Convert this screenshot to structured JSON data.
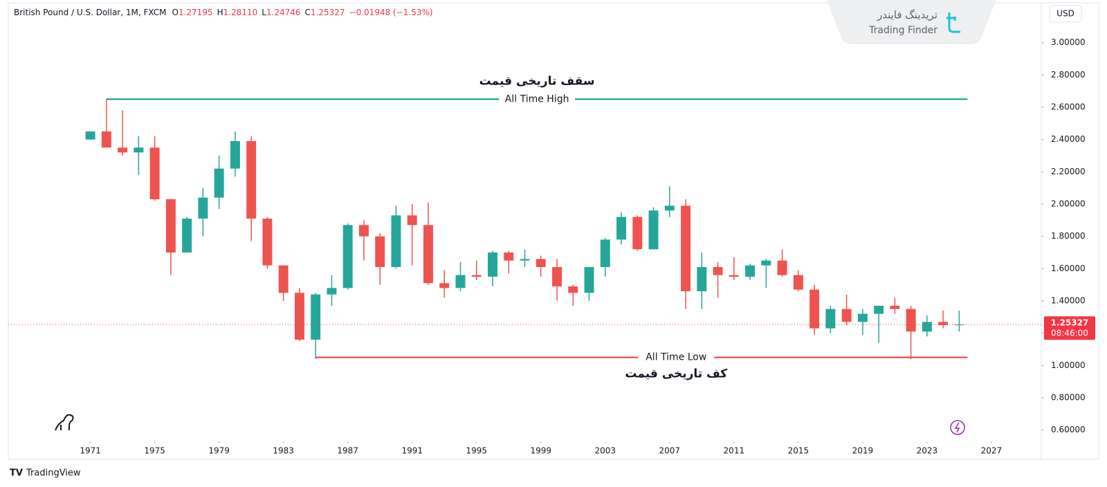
{
  "chart_data": {
    "type": "candlestick",
    "header": {
      "title": "British Pound / U.S. Dollar, 1M, FXCM",
      "ohlc": [
        {
          "label": "O",
          "value": "1.27195"
        },
        {
          "label": "H",
          "value": "1.28110"
        },
        {
          "label": "L",
          "value": "1.24746"
        },
        {
          "label": "C",
          "value": "1.25327"
        }
      ],
      "change": "−0.01948 (−1.53%)"
    },
    "currency": "USD",
    "brand": {
      "persian": "تریدینگ فایندر",
      "latin": "Trading Finder"
    },
    "footer": "TradingView",
    "up_color": "#26a69a",
    "down_color": "#ef5350",
    "x": [
      1971,
      1972,
      1973,
      1974,
      1975,
      1976,
      1977,
      1978,
      1979,
      1980,
      1981,
      1982,
      1983,
      1984,
      1985,
      1986,
      1987,
      1988,
      1989,
      1990,
      1991,
      1992,
      1993,
      1994,
      1995,
      1996,
      1997,
      1998,
      1999,
      2000,
      2001,
      2002,
      2003,
      2004,
      2005,
      2006,
      2007,
      2008,
      2009,
      2010,
      2011,
      2012,
      2013,
      2014,
      2015,
      2016,
      2017,
      2018,
      2019,
      2020,
      2021,
      2022,
      2023,
      2024,
      2025
    ],
    "open": [
      2.4,
      2.45,
      2.35,
      2.32,
      2.35,
      2.03,
      1.7,
      1.91,
      2.04,
      2.22,
      2.39,
      1.91,
      1.62,
      1.45,
      1.16,
      1.44,
      1.48,
      1.87,
      1.8,
      1.61,
      1.93,
      1.87,
      1.51,
      1.48,
      1.56,
      1.55,
      1.7,
      1.65,
      1.66,
      1.61,
      1.49,
      1.45,
      1.61,
      1.78,
      1.92,
      1.72,
      1.96,
      1.99,
      1.46,
      1.61,
      1.56,
      1.55,
      1.62,
      1.65,
      1.56,
      1.47,
      1.23,
      1.35,
      1.27,
      1.32,
      1.37,
      1.35,
      1.21,
      1.27,
      1.25
    ],
    "high": [
      2.45,
      2.65,
      2.58,
      2.42,
      2.42,
      2.03,
      1.92,
      2.1,
      2.3,
      2.45,
      2.42,
      1.92,
      1.62,
      1.48,
      1.45,
      1.56,
      1.88,
      1.9,
      1.82,
      1.99,
      2.0,
      2.01,
      1.59,
      1.64,
      1.65,
      1.71,
      1.71,
      1.72,
      1.68,
      1.66,
      1.5,
      1.61,
      1.79,
      1.95,
      1.93,
      1.98,
      2.11,
      2.03,
      1.7,
      1.64,
      1.67,
      1.63,
      1.66,
      1.72,
      1.59,
      1.5,
      1.37,
      1.44,
      1.35,
      1.37,
      1.42,
      1.37,
      1.31,
      1.34,
      1.34
    ],
    "low": [
      2.4,
      2.35,
      2.3,
      2.18,
      2.02,
      1.56,
      1.7,
      1.8,
      1.97,
      2.17,
      1.77,
      1.6,
      1.4,
      1.15,
      1.04,
      1.37,
      1.47,
      1.65,
      1.5,
      1.6,
      1.62,
      1.5,
      1.42,
      1.46,
      1.53,
      1.49,
      1.57,
      1.61,
      1.55,
      1.4,
      1.37,
      1.4,
      1.55,
      1.75,
      1.71,
      1.72,
      1.92,
      1.35,
      1.35,
      1.42,
      1.53,
      1.53,
      1.48,
      1.55,
      1.46,
      1.19,
      1.2,
      1.25,
      1.19,
      1.14,
      1.32,
      1.04,
      1.18,
      1.23,
      1.21
    ],
    "close": [
      2.45,
      2.35,
      2.32,
      2.35,
      2.03,
      1.7,
      1.91,
      2.04,
      2.22,
      2.39,
      1.91,
      1.62,
      1.45,
      1.16,
      1.44,
      1.48,
      1.87,
      1.8,
      1.61,
      1.93,
      1.87,
      1.51,
      1.48,
      1.56,
      1.55,
      1.7,
      1.65,
      1.66,
      1.61,
      1.49,
      1.45,
      1.61,
      1.78,
      1.92,
      1.72,
      1.96,
      1.99,
      1.46,
      1.61,
      1.56,
      1.55,
      1.62,
      1.65,
      1.56,
      1.47,
      1.23,
      1.35,
      1.27,
      1.32,
      1.37,
      1.35,
      1.21,
      1.27,
      1.25,
      1.25327
    ],
    "xlim": [
      1965.9,
      2030.1
    ],
    "xticks": [
      1971,
      1975,
      1979,
      1983,
      1987,
      1991,
      1995,
      1999,
      2003,
      2007,
      2011,
      2015,
      2019,
      2023,
      2027
    ],
    "ylim": [
      0.53,
      3.23
    ],
    "yticks": [
      {
        "value": 0.6,
        "label": "0.60000"
      },
      {
        "value": 0.8,
        "label": "0.80000"
      },
      {
        "value": 1.0,
        "label": "1.00000"
      },
      {
        "value": 1.2,
        "label": "1.20000"
      },
      {
        "value": 1.4,
        "label": "1.40000"
      },
      {
        "value": 1.6,
        "label": "1.60000"
      },
      {
        "value": 1.8,
        "label": "1.80000"
      },
      {
        "value": 2.0,
        "label": "2.00000"
      },
      {
        "value": 2.2,
        "label": "2.20000"
      },
      {
        "value": 2.4,
        "label": "2.40000"
      },
      {
        "value": 2.6,
        "label": "2.60000"
      },
      {
        "value": 2.8,
        "label": "2.80000"
      },
      {
        "value": 3.0,
        "label": "3.00000"
      }
    ],
    "last_price": {
      "value": 1.25327,
      "timer": "08:46:00",
      "color": "#f23645"
    },
    "levels": [
      {
        "text": "All Time High",
        "note": "سقف تاریخی قیمت",
        "value": 2.65,
        "color": "#089981",
        "note_side": "above"
      },
      {
        "text": "All Time Low",
        "note": "کف تاریخی قیمت",
        "value": 1.05,
        "color": "#f23645",
        "note_side": "below"
      }
    ]
  }
}
